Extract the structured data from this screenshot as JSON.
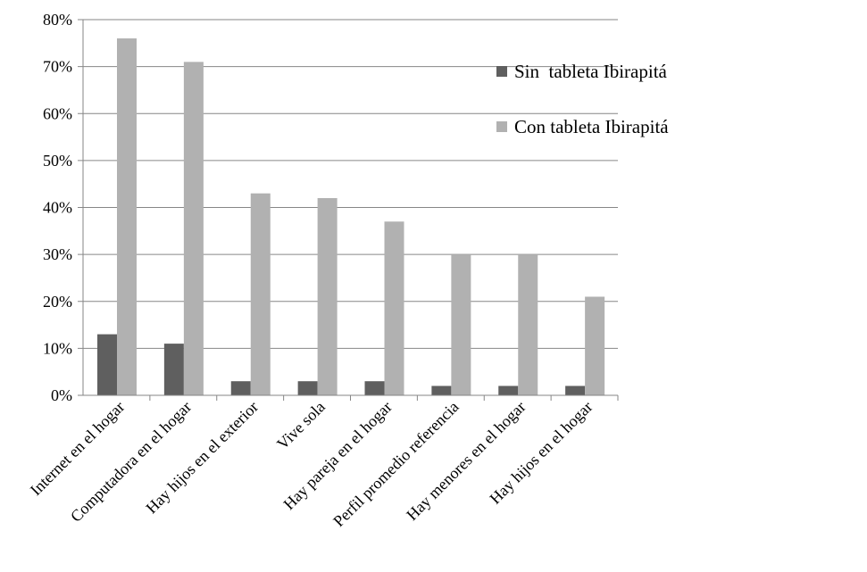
{
  "chart_data": {
    "type": "bar",
    "title": "",
    "xlabel": "",
    "ylabel": "",
    "ylim": [
      0,
      0.8
    ],
    "yticks": [
      0,
      0.1,
      0.2,
      0.3,
      0.4,
      0.5,
      0.6,
      0.7,
      0.8
    ],
    "ytick_labels": [
      "0%",
      "10%",
      "20%",
      "30%",
      "40%",
      "50%",
      "60%",
      "70%",
      "80%"
    ],
    "grid": true,
    "legend_position": "top-right",
    "categories": [
      "Internet en el hogar",
      "Computadora en el hogar",
      "Hay hijos en el exterior",
      "Vive sola",
      "Hay pareja en el hogar",
      "Perfil promedio referencia",
      "Hay menores en el hogar",
      "Hay hijos en el hogar"
    ],
    "series": [
      {
        "name": "Sin  tableta Ibirapitá",
        "color": "#5f5f5f",
        "values": [
          0.13,
          0.11,
          0.03,
          0.03,
          0.03,
          0.02,
          0.02,
          0.02
        ]
      },
      {
        "name": "Con tableta Ibirapitá",
        "color": "#b1b1b1",
        "values": [
          0.76,
          0.71,
          0.43,
          0.42,
          0.37,
          0.3,
          0.3,
          0.21
        ]
      }
    ]
  }
}
